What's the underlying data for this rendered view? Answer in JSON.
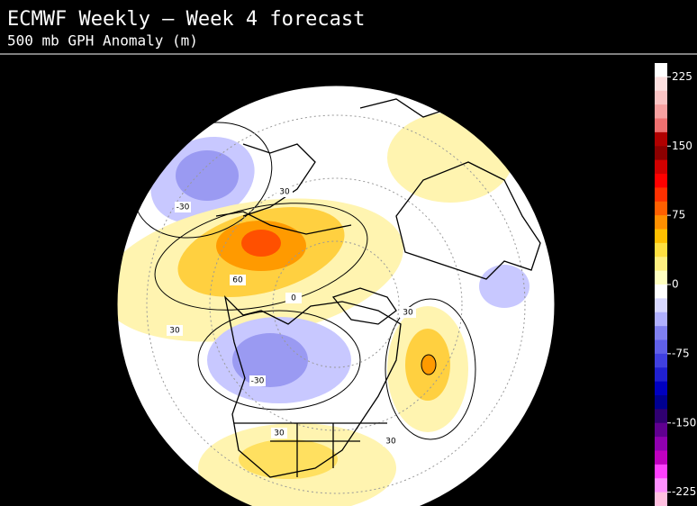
{
  "header": {
    "title": "ECMWF Weekly — Week 4 forecast",
    "subtitle": "500 mb GPH Anomaly (m)"
  },
  "map": {
    "contour_labels": [
      -30,
      30,
      60,
      0,
      30,
      -30,
      30,
      30,
      30
    ]
  },
  "colorbar": {
    "range": [
      -240,
      240
    ],
    "ticks": [
      225,
      150,
      75,
      0,
      -75,
      -150,
      -225
    ],
    "colors": [
      "#ffffff",
      "#fde0e0",
      "#fbc4c4",
      "#f7a0a0",
      "#ee7070",
      "#b00000",
      "#8b0000",
      "#d00000",
      "#ff0000",
      "#ff3000",
      "#ff6000",
      "#ff9000",
      "#ffc000",
      "#ffe040",
      "#fff080",
      "#ffffc0",
      "#ffffff",
      "#d8d8ff",
      "#b0b0ff",
      "#8080f0",
      "#6060e8",
      "#4040e0",
      "#2020d0",
      "#0000c0",
      "#000090",
      "#300070",
      "#600090",
      "#9000b0",
      "#c000c0",
      "#ff40ff",
      "#ff90ff",
      "#ffc0e0"
    ]
  }
}
